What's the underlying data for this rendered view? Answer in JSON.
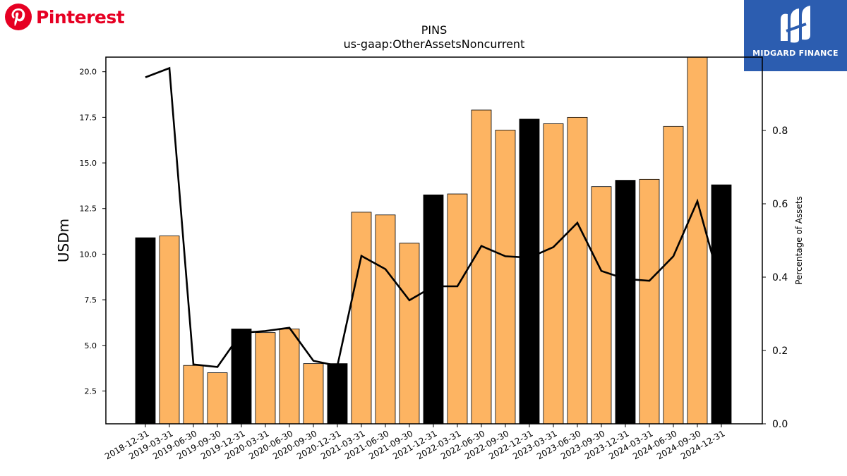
{
  "brand": {
    "name": "Pinterest",
    "icon": "pinterest-logo",
    "color": "#e60023"
  },
  "badge": {
    "name": "MIDGARD FINANCE",
    "color": "#2c5db0"
  },
  "chart_data": {
    "type": "bar",
    "title": "PINS",
    "subtitle": "us-gaap:OtherAssetsNoncurrent",
    "ylabel": "USDm",
    "y2label": "Percentage of Assets",
    "ylim": [
      0.7,
      20.8
    ],
    "y2lim": [
      0,
      1.0
    ],
    "yticks": [
      "2.5",
      "5.0",
      "7.5",
      "10.0",
      "12.5",
      "15.0",
      "17.5",
      "20.0"
    ],
    "y2ticks": [
      "0.0",
      "0.2",
      "0.4",
      "0.6",
      "0.8"
    ],
    "categories": [
      "2018-12-31",
      "2019-03-31",
      "2019-06-30",
      "2019-09-30",
      "2019-12-31",
      "2020-03-31",
      "2020-06-30",
      "2020-09-30",
      "2020-12-31",
      "2021-03-31",
      "2021-06-30",
      "2021-09-30",
      "2021-12-31",
      "2022-03-31",
      "2022-06-30",
      "2022-09-30",
      "2022-12-31",
      "2023-03-31",
      "2023-06-30",
      "2023-09-30",
      "2023-12-31",
      "2024-03-31",
      "2024-06-30",
      "2024-09-30",
      "2024-12-31"
    ],
    "series": [
      {
        "values": [
          10.9,
          11.0,
          3.9,
          3.5,
          5.9,
          5.7,
          5.9,
          4.0,
          4.0,
          12.3,
          12.15,
          10.6,
          13.25,
          13.3,
          17.9,
          16.8,
          17.4,
          17.15,
          17.5,
          13.7,
          14.05,
          14.1,
          17.0,
          20.8,
          13.8
        ]
      },
      {
        "type": "line",
        "axis": "secondary",
        "values": [
          0.945,
          0.97,
          0.162,
          0.155,
          0.248,
          0.253,
          0.262,
          0.172,
          0.158,
          0.458,
          0.422,
          0.337,
          0.375,
          0.375,
          0.485,
          0.457,
          0.453,
          0.482,
          0.548,
          0.417,
          0.395,
          0.39,
          0.457,
          0.607,
          0.37
        ]
      }
    ],
    "highlight": "December (year-end) quarters",
    "colors": {
      "bar": "#fdb462",
      "bar_year_end": "#000000",
      "line": "#000000"
    },
    "grid": false
  }
}
